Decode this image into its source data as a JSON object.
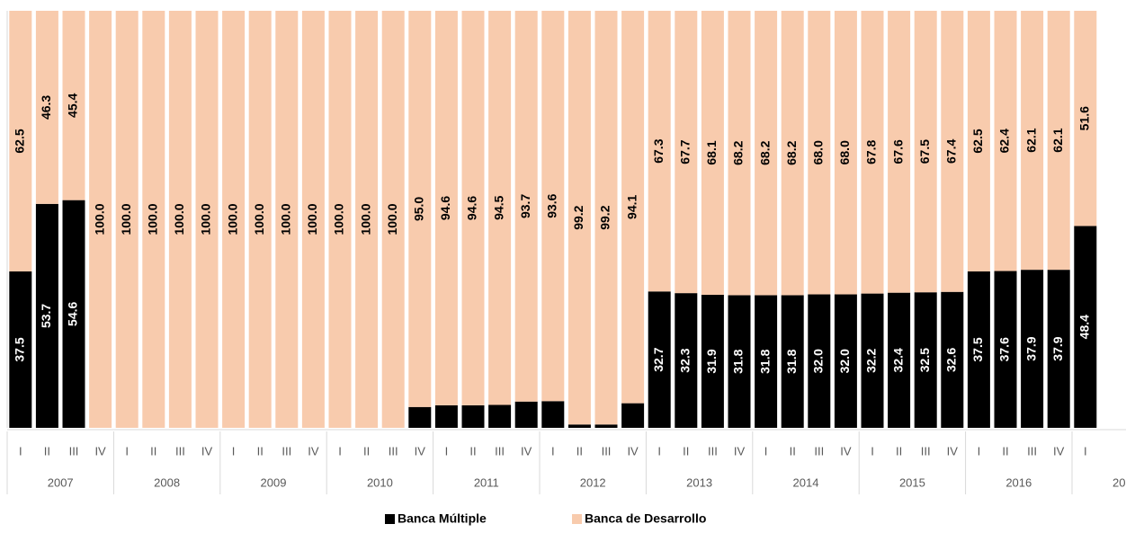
{
  "chart_data": {
    "type": "stacked_bar",
    "categories": [
      "I",
      "II",
      "III",
      "IV",
      "I",
      "II",
      "III",
      "IV",
      "I",
      "II",
      "III",
      "IV",
      "I",
      "II",
      "III",
      "IV",
      "I",
      "II",
      "III",
      "IV",
      "I",
      "II",
      "III",
      "IV",
      "I",
      "II",
      "III",
      "IV",
      "I",
      "II",
      "III",
      "IV",
      "I",
      "II",
      "III",
      "IV",
      "I",
      "II",
      "III",
      "IV",
      "I"
    ],
    "groups": [
      "2007",
      "2008",
      "2009",
      "2010",
      "2011",
      "2012",
      "2013",
      "2014",
      "2015",
      "2016",
      "20"
    ],
    "ylim": [
      0,
      100
    ],
    "series": [
      {
        "name": "Banca Múltiple",
        "color": "#000000",
        "values": [
          37.5,
          53.7,
          54.6,
          0,
          0,
          0,
          0,
          0,
          0,
          0,
          0,
          0,
          0,
          0,
          0,
          5.0,
          5.4,
          5.4,
          5.5,
          6.3,
          6.4,
          0.8,
          0.8,
          5.9,
          32.7,
          32.3,
          31.9,
          31.8,
          31.8,
          31.8,
          32.0,
          32.0,
          32.2,
          32.4,
          32.5,
          32.6,
          37.5,
          37.6,
          37.9,
          37.9,
          48.4
        ],
        "value_labels": [
          "37.5",
          "53.7",
          "54.6",
          null,
          null,
          null,
          null,
          null,
          null,
          null,
          null,
          null,
          null,
          null,
          null,
          null,
          null,
          null,
          null,
          null,
          null,
          null,
          null,
          null,
          "32.7",
          "32.3",
          "31.9",
          "31.8",
          "31.8",
          "31.8",
          "32.0",
          "32.0",
          "32.2",
          "32.4",
          "32.5",
          "32.6",
          "37.5",
          "37.6",
          "37.9",
          "37.9",
          "48.4"
        ]
      },
      {
        "name": "Banca de Desarrollo",
        "color": "#f8cbad",
        "values": [
          62.5,
          46.3,
          45.4,
          100,
          100,
          100,
          100,
          100,
          100,
          100,
          100,
          100,
          100,
          100,
          100,
          95.0,
          94.6,
          94.6,
          94.5,
          93.7,
          93.6,
          99.2,
          99.2,
          94.1,
          67.3,
          67.7,
          68.1,
          68.2,
          68.2,
          68.2,
          68.0,
          68.0,
          67.8,
          67.6,
          67.5,
          67.4,
          62.5,
          62.4,
          62.1,
          62.1,
          51.6
        ],
        "value_labels": [
          "62.5",
          "46.3",
          "45.4",
          "100.0",
          "100.0",
          "100.0",
          "100.0",
          "100.0",
          "100.0",
          "100.0",
          "100.0",
          "100.0",
          "100.0",
          "100.0",
          "100.0",
          "95.0",
          "94.6",
          "94.6",
          "94.5",
          "93.7",
          "93.6",
          "99.2",
          "99.2",
          "94.1",
          "67.3",
          "67.7",
          "68.1",
          "68.2",
          "68.2",
          "68.2",
          "68.0",
          "68.0",
          "67.8",
          "67.6",
          "67.5",
          "67.4",
          "62.5",
          "62.4",
          "62.1",
          "62.1",
          "51.6"
        ]
      }
    ]
  }
}
